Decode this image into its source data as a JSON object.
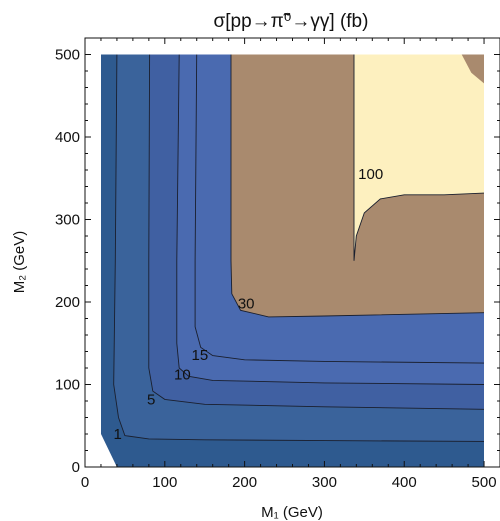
{
  "chart_data": {
    "type": "contour",
    "title": "σ[pp→π̃⁰→γγ] (fb)",
    "xlabel": "M₁ (GeV)",
    "ylabel": "M₂ (GeV)",
    "xlim": [
      0,
      520
    ],
    "ylim": [
      0,
      520
    ],
    "x_ticks": [
      0,
      100,
      200,
      300,
      400,
      500
    ],
    "y_ticks": [
      0,
      100,
      200,
      300,
      400,
      500
    ],
    "grid": false,
    "domain": [
      [
        20,
        500
      ],
      [
        500,
        500
      ],
      [
        500,
        0
      ],
      [
        40,
        0
      ],
      [
        20,
        40
      ]
    ],
    "region_colors": [
      "#2e5a8f",
      "#3a639b",
      "#4060a2",
      "#4a6ab0",
      "#a98a6e",
      "#fdf0bf"
    ],
    "regions": [
      {
        "level": 30,
        "color": "#a98a6e",
        "points": [
          [
            183,
            500
          ],
          [
            500,
            500
          ],
          [
            500,
            187
          ],
          [
            300,
            183
          ],
          [
            230,
            182
          ],
          [
            195,
            190
          ],
          [
            184,
            210
          ],
          [
            183,
            250
          ]
        ]
      },
      {
        "level": 100,
        "color": "#fdf0bf",
        "points": [
          [
            337,
            500
          ],
          [
            472,
            500
          ],
          [
            484,
            478
          ],
          [
            500,
            465
          ],
          [
            500,
            332
          ],
          [
            450,
            330
          ],
          [
            400,
            330
          ],
          [
            370,
            325
          ],
          [
            350,
            308
          ],
          [
            340,
            280
          ],
          [
            337,
            250
          ]
        ]
      }
    ],
    "contour_lines": [
      {
        "level": 1,
        "points": [
          [
            40,
            500
          ],
          [
            38,
            250
          ],
          [
            36,
            100
          ],
          [
            42,
            60
          ],
          [
            50,
            38
          ],
          [
            80,
            34
          ],
          [
            150,
            33
          ],
          [
            300,
            32
          ],
          [
            500,
            31
          ]
        ]
      },
      {
        "level": 5,
        "points": [
          [
            81,
            500
          ],
          [
            80,
            250
          ],
          [
            80,
            120
          ],
          [
            85,
            92
          ],
          [
            100,
            82
          ],
          [
            150,
            76
          ],
          [
            300,
            73
          ],
          [
            500,
            70
          ]
        ]
      },
      {
        "level": 10,
        "points": [
          [
            118,
            500
          ],
          [
            115,
            250
          ],
          [
            115,
            150
          ],
          [
            118,
            120
          ],
          [
            130,
            110
          ],
          [
            160,
            105
          ],
          [
            300,
            102
          ],
          [
            500,
            100
          ]
        ]
      },
      {
        "level": 15,
        "points": [
          [
            140,
            500
          ],
          [
            138,
            250
          ],
          [
            138,
            170
          ],
          [
            145,
            145
          ],
          [
            160,
            135
          ],
          [
            200,
            130
          ],
          [
            300,
            128
          ],
          [
            500,
            126
          ]
        ]
      },
      {
        "level": 30,
        "points": [
          [
            183,
            500
          ],
          [
            183,
            250
          ],
          [
            184,
            210
          ],
          [
            195,
            190
          ],
          [
            230,
            182
          ],
          [
            300,
            183
          ],
          [
            500,
            187
          ]
        ]
      },
      {
        "level": 100,
        "points": [
          [
            337,
            500
          ],
          [
            337,
            250
          ],
          [
            340,
            280
          ],
          [
            350,
            308
          ],
          [
            370,
            325
          ],
          [
            400,
            330
          ],
          [
            450,
            330
          ],
          [
            500,
            332
          ]
        ]
      }
    ],
    "contour_labels": [
      {
        "text": "1",
        "x": 41,
        "y": 40
      },
      {
        "text": "5",
        "x": 83,
        "y": 82
      },
      {
        "text": "10",
        "x": 122,
        "y": 112
      },
      {
        "text": "15",
        "x": 144,
        "y": 136
      },
      {
        "text": "30",
        "x": 202,
        "y": 198
      },
      {
        "text": "100",
        "x": 358,
        "y": 355
      }
    ]
  }
}
